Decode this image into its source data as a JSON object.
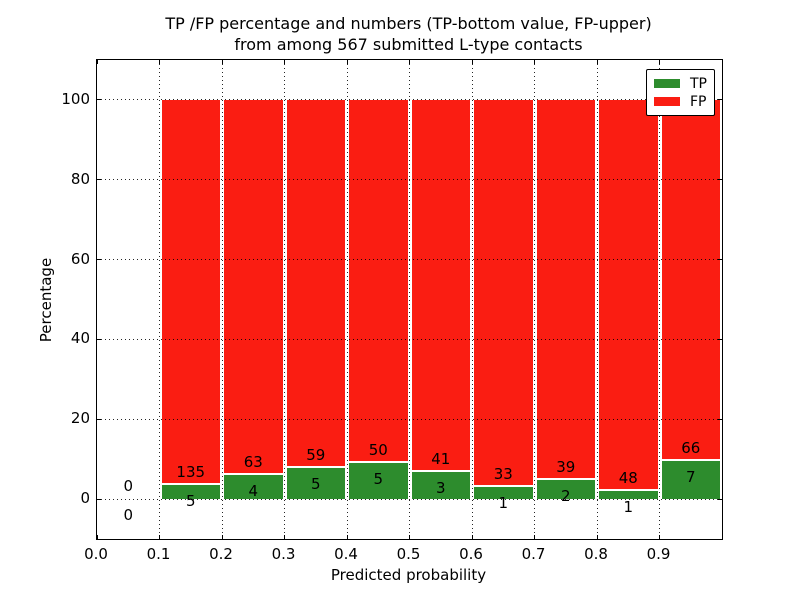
{
  "figure": {
    "kind": "matplotlib-style stacked percentage bar chart"
  },
  "chart_data": {
    "type": "bar",
    "stacked": true,
    "units": "percent of bin total",
    "title_line1": "TP /FP percentage and numbers (TP-bottom value, FP-upper)",
    "title_line2": "from among 567 submitted L-type contacts",
    "title": "TP /FP percentage and numbers (TP-bottom value, FP-upper)\nfrom among 567 submitted L-type contacts",
    "xlabel": "Predicted probability",
    "ylabel": "Percentage",
    "total_contacts": 567,
    "xlim": [
      0.0,
      1.0
    ],
    "ylim": [
      -10,
      110
    ],
    "grid": "dotted",
    "xticks": [
      {
        "value": 0.0,
        "label": "0.0"
      },
      {
        "value": 0.1,
        "label": "0.1"
      },
      {
        "value": 0.2,
        "label": "0.2"
      },
      {
        "value": 0.3,
        "label": "0.3"
      },
      {
        "value": 0.4,
        "label": "0.4"
      },
      {
        "value": 0.5,
        "label": "0.5"
      },
      {
        "value": 0.6,
        "label": "0.6"
      },
      {
        "value": 0.7,
        "label": "0.7"
      },
      {
        "value": 0.8,
        "label": "0.8"
      },
      {
        "value": 0.9,
        "label": "0.9"
      }
    ],
    "yticks": [
      {
        "value": 0,
        "label": "0"
      },
      {
        "value": 20,
        "label": "20"
      },
      {
        "value": 40,
        "label": "40"
      },
      {
        "value": 60,
        "label": "60"
      },
      {
        "value": 80,
        "label": "80"
      },
      {
        "value": 100,
        "label": "100"
      }
    ],
    "legend": {
      "position": "upper right",
      "entries": [
        {
          "label": "TP",
          "color": "#2d8c2d"
        },
        {
          "label": "FP",
          "color": "#fa1d12"
        }
      ]
    },
    "colors": {
      "tp": "#2d8c2d",
      "fp": "#fa1d12",
      "grid": "#000000",
      "background": "#ffffff"
    },
    "bins": [
      {
        "x0": 0.0,
        "x1": 0.1,
        "tp": 0,
        "fp": 0,
        "tp_pct": 0,
        "fp_pct": 0
      },
      {
        "x0": 0.1,
        "x1": 0.2,
        "tp": 5,
        "fp": 135,
        "tp_pct": 3.5714,
        "fp_pct": 96.4286
      },
      {
        "x0": 0.2,
        "x1": 0.3,
        "tp": 4,
        "fp": 63,
        "tp_pct": 5.9701,
        "fp_pct": 94.0299
      },
      {
        "x0": 0.3,
        "x1": 0.4,
        "tp": 5,
        "fp": 59,
        "tp_pct": 7.8125,
        "fp_pct": 92.1875
      },
      {
        "x0": 0.4,
        "x1": 0.5,
        "tp": 5,
        "fp": 50,
        "tp_pct": 9.0909,
        "fp_pct": 90.9091
      },
      {
        "x0": 0.5,
        "x1": 0.6,
        "tp": 3,
        "fp": 41,
        "tp_pct": 6.8182,
        "fp_pct": 93.1818
      },
      {
        "x0": 0.6,
        "x1": 0.7,
        "tp": 1,
        "fp": 33,
        "tp_pct": 2.9412,
        "fp_pct": 97.0588
      },
      {
        "x0": 0.7,
        "x1": 0.8,
        "tp": 2,
        "fp": 39,
        "tp_pct": 4.878,
        "fp_pct": 95.122
      },
      {
        "x0": 0.8,
        "x1": 0.9,
        "tp": 1,
        "fp": 48,
        "tp_pct": 2.0408,
        "fp_pct": 97.9592
      },
      {
        "x0": 0.9,
        "x1": 1.0,
        "tp": 7,
        "fp": 66,
        "tp_pct": 9.589,
        "fp_pct": 90.411
      }
    ]
  }
}
